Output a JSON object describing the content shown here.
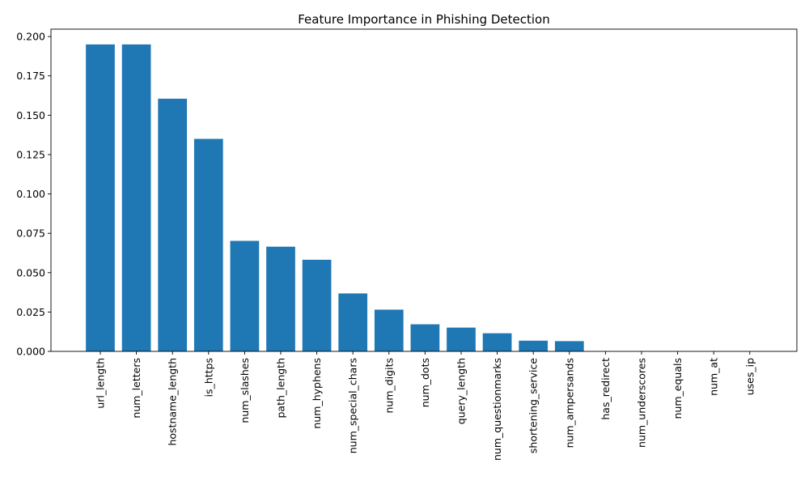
{
  "chart_data": {
    "type": "bar",
    "title": "Feature Importance in Phishing Detection",
    "xlabel": "",
    "ylabel": "",
    "categories": [
      "url_length",
      "num_letters",
      "hostname_length",
      "is_https",
      "num_slashes",
      "path_length",
      "num_hyphens",
      "num_special_chars",
      "num_digits",
      "num_dots",
      "query_length",
      "num_questionmarks",
      "shortening_service",
      "num_ampersands",
      "has_redirect",
      "num_underscores",
      "num_equals",
      "num_at",
      "uses_ip"
    ],
    "values": [
      0.195,
      0.195,
      0.1605,
      0.135,
      0.0702,
      0.0665,
      0.0582,
      0.0368,
      0.0265,
      0.0172,
      0.0151,
      0.0115,
      0.0068,
      0.0065,
      0.0,
      0.0,
      0.0,
      0.0,
      0.0
    ],
    "ylim": [
      0,
      0.2047
    ],
    "yticks": [
      "0.000",
      "0.025",
      "0.050",
      "0.075",
      "0.100",
      "0.125",
      "0.150",
      "0.175",
      "0.200"
    ],
    "ytick_values": [
      0,
      0.025,
      0.05,
      0.075,
      0.1,
      0.125,
      0.15,
      0.175,
      0.2
    ],
    "grid": false,
    "bar_color": "#1f77b4"
  }
}
